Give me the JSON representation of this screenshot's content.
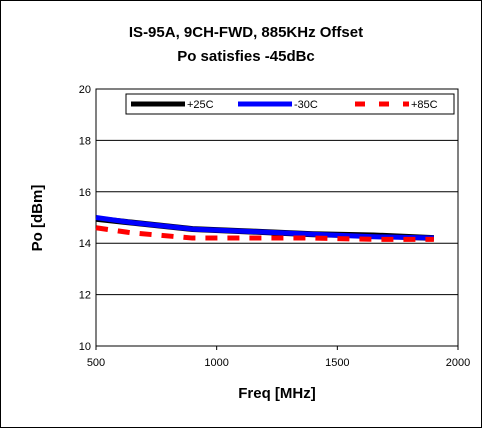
{
  "chart_data": {
    "type": "line",
    "title": "IS-95A, 9CH-FWD, 885KHz Offset",
    "subtitle": "Po satisfies -45dBc",
    "xlabel": "Freq [MHz]",
    "ylabel": "Po [dBm]",
    "xlim": [
      500,
      2000
    ],
    "ylim": [
      10,
      20
    ],
    "x_ticks": [
      "500",
      "1000",
      "1500",
      "2000"
    ],
    "y_ticks": [
      "10",
      "12",
      "14",
      "16",
      "18",
      "20"
    ],
    "grid": "horizontal",
    "legend_position": "top-right",
    "x": [
      500,
      650,
      900,
      1150,
      1400,
      1650,
      1900
    ],
    "series": [
      {
        "name": "+25C",
        "color": "#000000",
        "style": "solid",
        "values": [
          14.95,
          14.8,
          14.55,
          14.45,
          14.35,
          14.3,
          14.2
        ]
      },
      {
        "name": "-30C",
        "color": "#0000ff",
        "style": "solid",
        "values": [
          15.0,
          14.8,
          14.55,
          14.45,
          14.35,
          14.25,
          14.2
        ]
      },
      {
        "name": "+85C",
        "color": "#ff0000",
        "style": "dashed",
        "values": [
          14.6,
          14.4,
          14.2,
          14.2,
          14.2,
          14.15,
          14.15
        ]
      }
    ]
  }
}
